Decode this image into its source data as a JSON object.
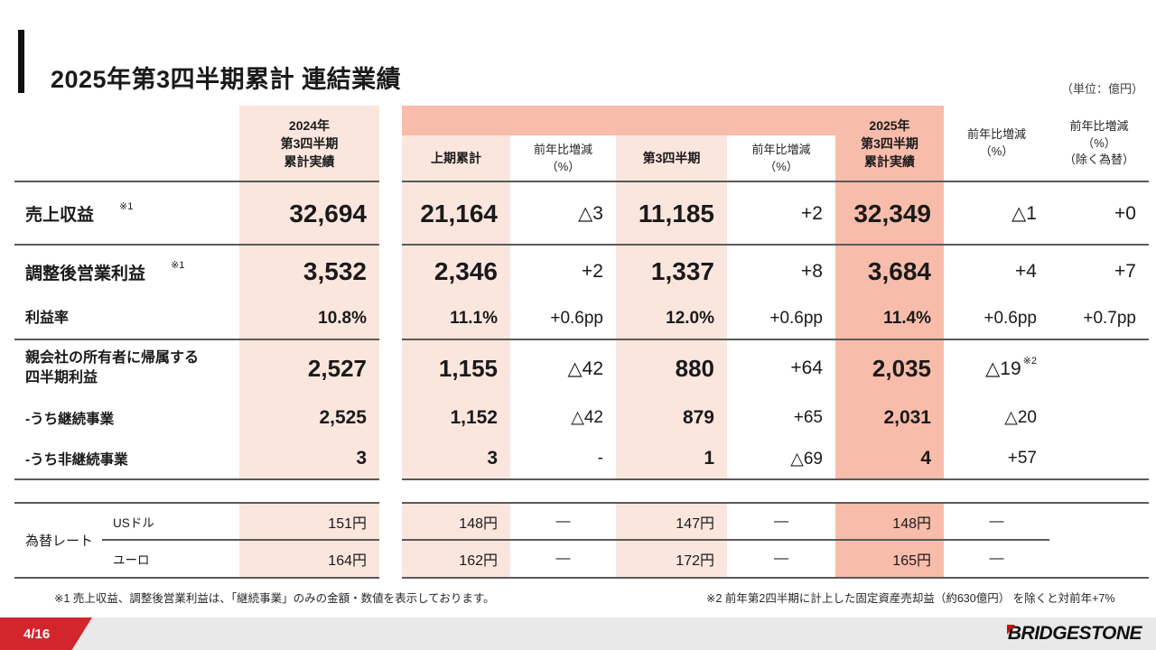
{
  "header": {
    "title": "2025年第3四半期累計 連結業績",
    "unit": "（単位：億円）"
  },
  "table": {
    "columns": {
      "prev_year": "2024年\n第3四半期\n累計実績",
      "first_half": "上期累計",
      "first_half_yoy": "前年比増減\n（%）",
      "q3": "第3四半期",
      "q3_yoy": "前年比増減\n（%）",
      "cur_year": "2025年\n第3四半期\n累計実績",
      "yoy": "前年比増減\n（%）",
      "yoy_ex_fx": "前年比増減\n（%）\n（除く為替）"
    },
    "rows": [
      {
        "label": "売上収益",
        "note": "※1",
        "values": [
          "32,694",
          "21,164",
          "△3",
          "11,185",
          "+2",
          "32,349",
          "△1",
          "+0"
        ]
      },
      {
        "label": "調整後営業利益",
        "note": "※1",
        "values": [
          "3,532",
          "2,346",
          "+2",
          "1,337",
          "+8",
          "3,684",
          "+4",
          "+7"
        ]
      },
      {
        "label": "利益率",
        "values": [
          "10.8%",
          "11.1%",
          "+0.6pp",
          "12.0%",
          "+0.6pp",
          "11.4%",
          "+0.6pp",
          "+0.7pp"
        ]
      },
      {
        "label": "親会社の所有者に帰属する\n四半期利益",
        "value_note": "※2",
        "values": [
          "2,527",
          "1,155",
          "△42",
          "880",
          "+64",
          "2,035",
          "△19",
          ""
        ]
      },
      {
        "label": "-うち継続事業",
        "values": [
          "2,525",
          "1,152",
          "△42",
          "879",
          "+65",
          "2,031",
          "△20",
          ""
        ]
      },
      {
        "label": "-うち非継続事業",
        "values": [
          "3",
          "3",
          "-",
          "1",
          "△69",
          "4",
          "+57",
          ""
        ]
      }
    ],
    "fx": {
      "label": "為替レート",
      "rows": [
        {
          "currency": "USドル",
          "values": [
            "151円",
            "148円",
            "—",
            "147円",
            "—",
            "148円",
            "—",
            ""
          ]
        },
        {
          "currency": "ユーロ",
          "values": [
            "164円",
            "162円",
            "—",
            "172円",
            "—",
            "165円",
            "—",
            ""
          ]
        }
      ]
    }
  },
  "footnotes": {
    "note1": "※1 売上収益、調整後営業利益は、「継続事業」のみの金額・数値を表示しております。",
    "note2": "※2 前年第2四半期に計上した固定資産売却益（約630億円） を除くと対前年+7%"
  },
  "footer": {
    "page": "4/16",
    "brand": "BRIDGESTONE"
  },
  "colors": {
    "column_light_pink": "#fbe6de",
    "column_salmon": "#f8bcab",
    "footer_red": "#d2262c",
    "footer_gray": "#e9e9e9",
    "line_gray": "#5a5a5a",
    "brand_red": "#cc0f0f"
  }
}
